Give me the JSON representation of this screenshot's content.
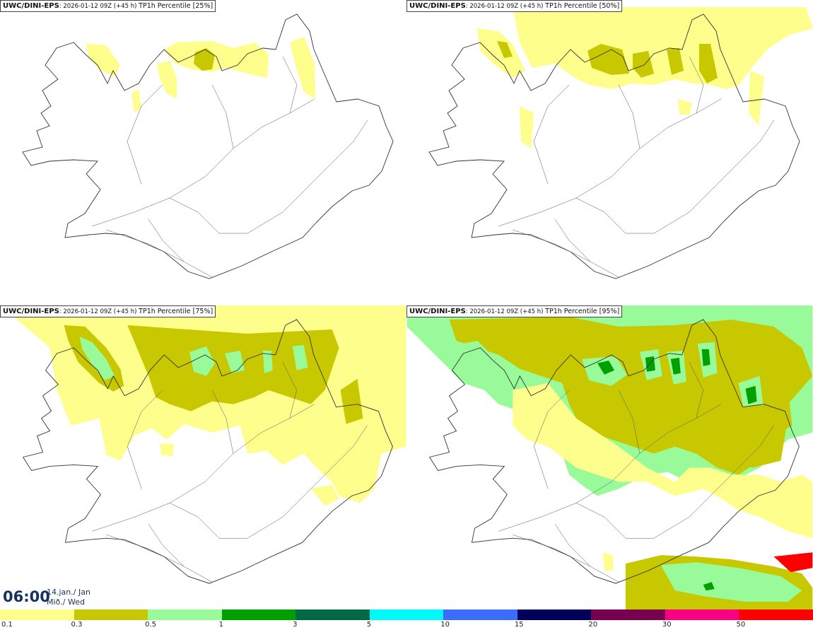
{
  "panels": [
    {
      "model": "UWC/DINI-EPS",
      "run": "2026-01-12 09Z (+45 h)",
      "label": "TP1h Percentile [25%]"
    },
    {
      "model": "UWC/DINI-EPS",
      "run": "2026-01-12 09Z (+45 h)",
      "label": "TP1h Percentile [50%]"
    },
    {
      "model": "UWC/DINI-EPS",
      "run": "2026-01-12 09Z (+45 h)",
      "label": "TP1h Percentile [75%]"
    },
    {
      "model": "UWC/DINI-EPS",
      "run": "2026-01-12 09Z (+45 h)",
      "label": "TP1h Percentile [95%]"
    }
  ],
  "valid_time": {
    "time": "06:00",
    "date": "14.jan./ Jan",
    "day": "Mið./ Wed"
  },
  "legend": {
    "ticks": [
      "0.1",
      "0.3",
      "0.5",
      "1",
      "3",
      "5",
      "10",
      "15",
      "20",
      "30",
      "50"
    ],
    "colors": [
      "#fefe8c",
      "#c8c800",
      "#98fa98",
      "#00a000",
      "#006a46",
      "#00fafa",
      "#3c6cfa",
      "#00005a",
      "#780050",
      "#fa0082",
      "#ff0000"
    ]
  }
}
